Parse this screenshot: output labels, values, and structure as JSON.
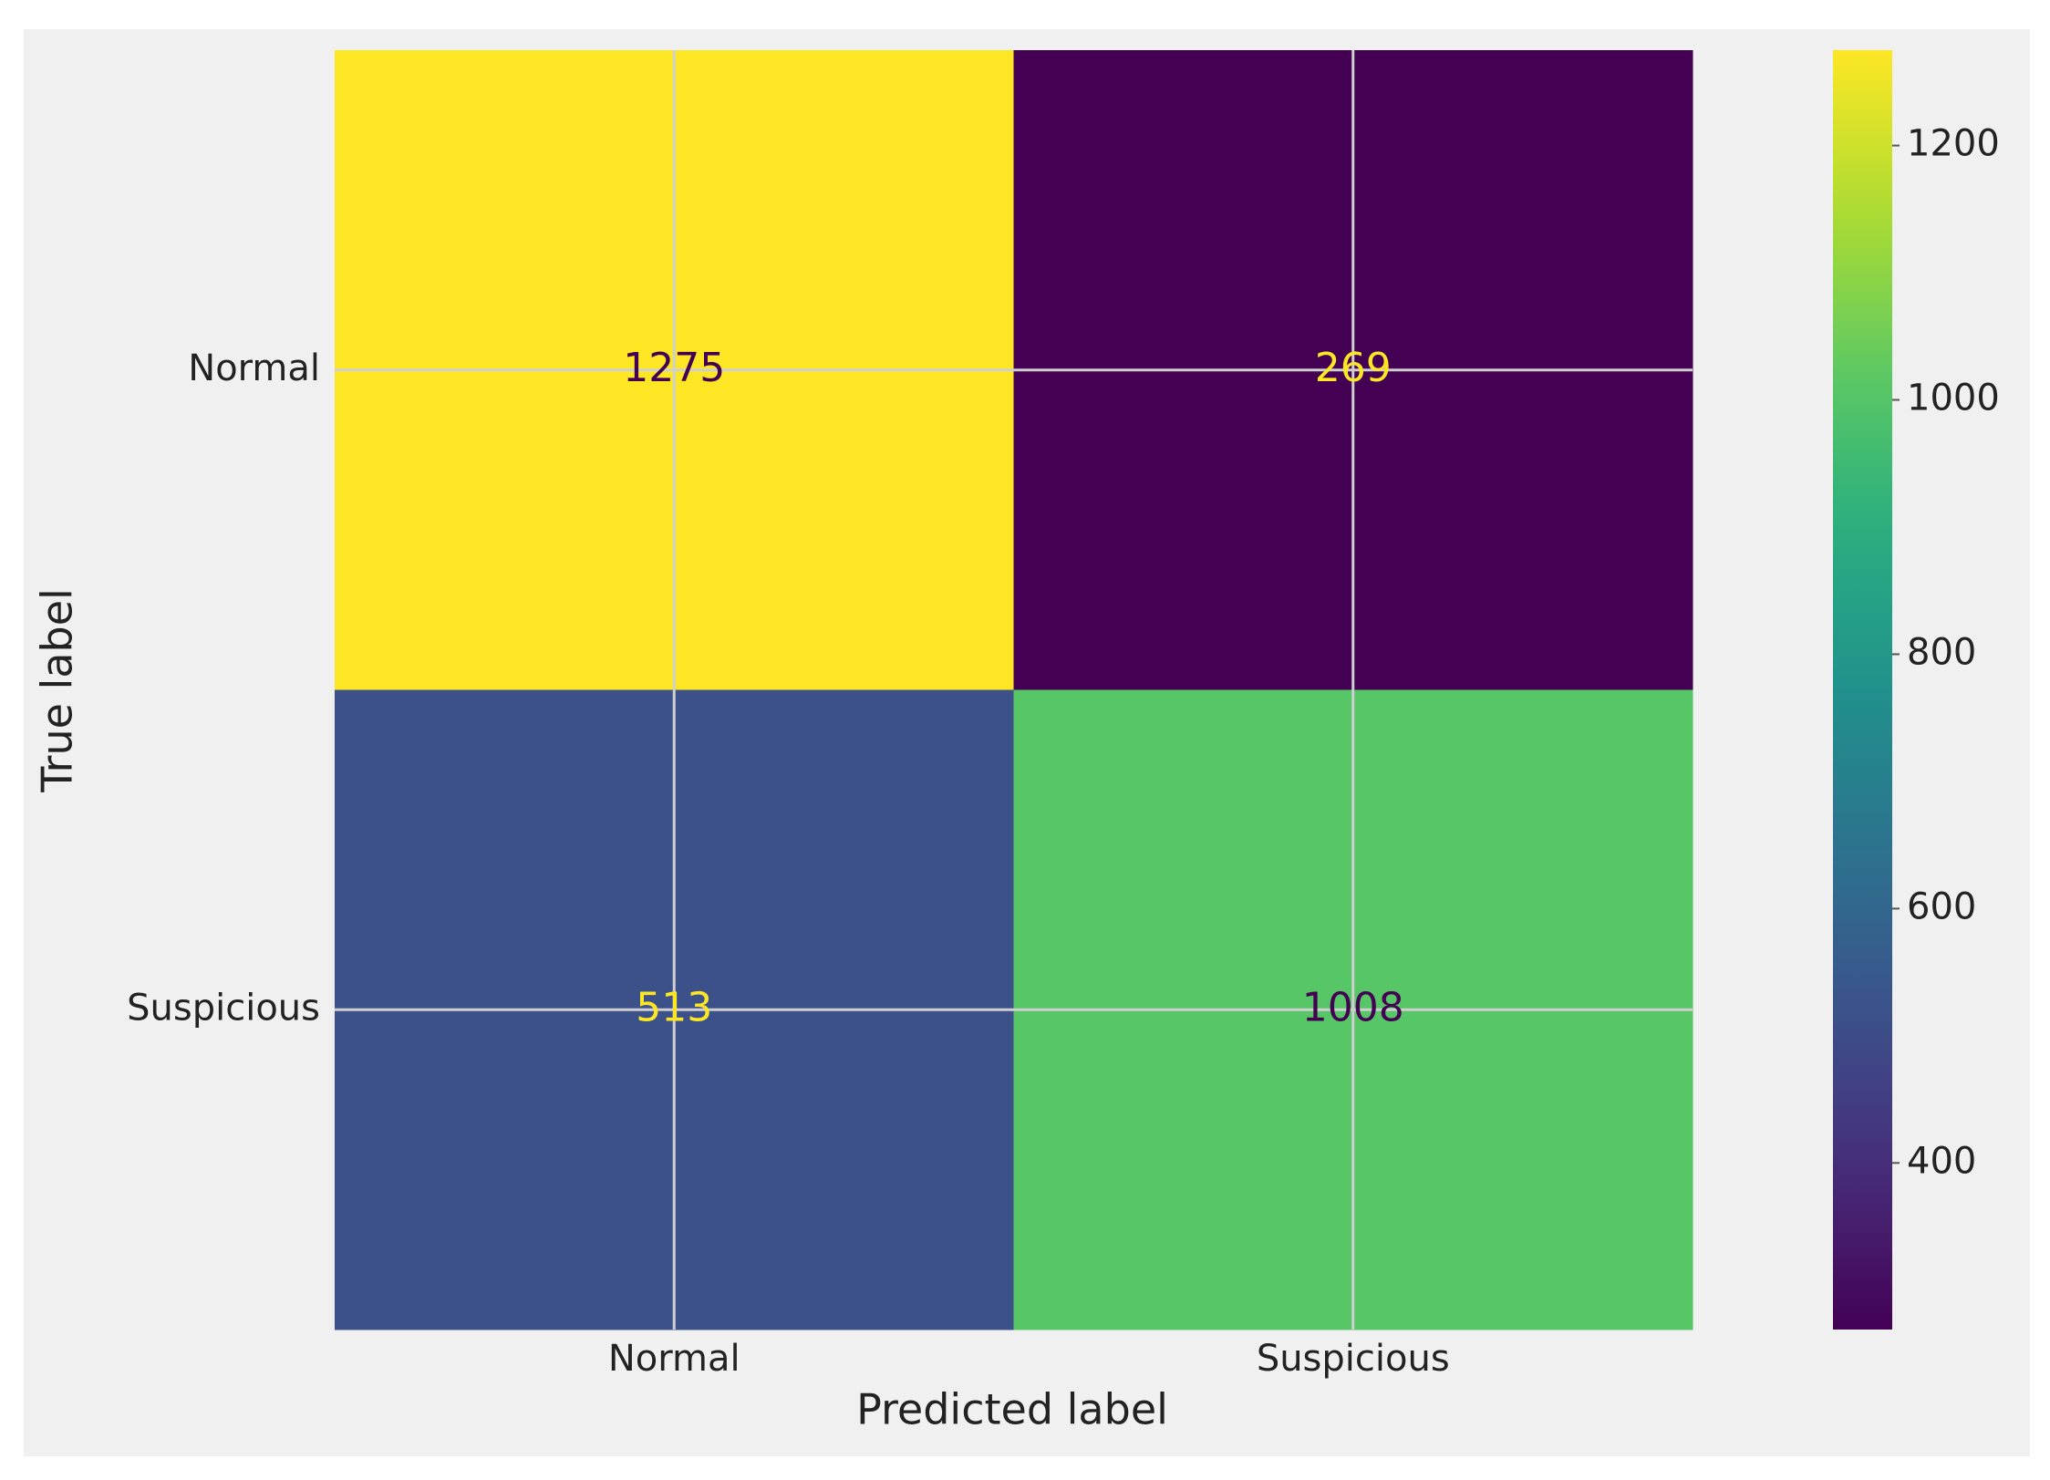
{
  "chart_data": {
    "type": "heatmap",
    "x_label": "Predicted label",
    "y_label": "True label",
    "x_categories": [
      "Normal",
      "Suspicious"
    ],
    "y_categories": [
      "Normal",
      "Suspicious"
    ],
    "values": [
      [
        1275,
        269
      ],
      [
        513,
        1008
      ]
    ],
    "colormap": "viridis",
    "clim": [
      269,
      1275
    ],
    "colorbar_ticks": [
      400,
      600,
      800,
      1000,
      1200
    ],
    "grid": true
  }
}
